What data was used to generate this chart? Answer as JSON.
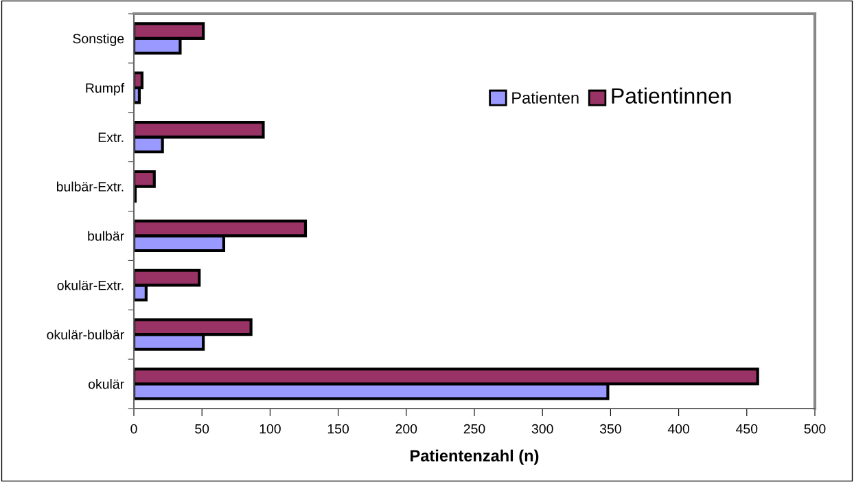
{
  "chart_data": {
    "type": "bar",
    "orientation": "horizontal",
    "xlabel": "Patientenzahl (n)",
    "categories": [
      "Sonstige",
      "Rumpf",
      "Extr.",
      "bulbär-Extr.",
      "bulbär",
      "okulär-Extr.",
      "okulär-bulbär",
      "okulär"
    ],
    "series": [
      {
        "name": "Patienten",
        "color": "#9999ff",
        "values": [
          34,
          4,
          21,
          1,
          66,
          9,
          51,
          348
        ]
      },
      {
        "name": "Patientinnen",
        "color": "#993366",
        "values": [
          51,
          6,
          95,
          15,
          126,
          48,
          86,
          458
        ]
      }
    ],
    "xlim": [
      0,
      500
    ],
    "xticks": [
      0,
      50,
      100,
      150,
      200,
      250,
      300,
      350,
      400,
      450,
      500
    ],
    "grid": false,
    "legend": "top right"
  }
}
